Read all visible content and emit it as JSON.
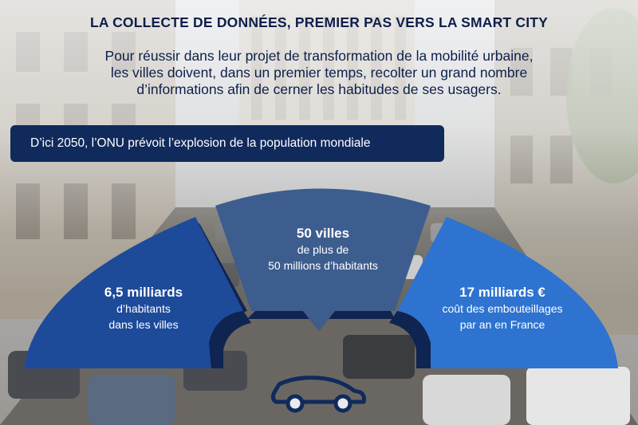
{
  "title": "LA COLLECTE DE DONNÉES, PREMIER PAS VERS LA SMART CITY",
  "intro": {
    "line1": "Pour réussir dans leur projet de transformation de la mobilité urbaine,",
    "line2": "les villes doivent, dans un premier  temps, recolter un grand nombre",
    "line3": "d’informations afin de cerner les habitudes de ses usagers."
  },
  "banner": "D’ici 2050, l’ONU prévoit l’explosion de la population mondiale",
  "stats": {
    "left": {
      "value": "6,5 milliards",
      "line1": "d’habitants",
      "line2": "dans les villes"
    },
    "middle": {
      "value": "50 villes",
      "line1": "de plus de",
      "line2": "50 millions d’habitants"
    },
    "right": {
      "value": "17 milliards €",
      "line1": "coût des embouteillages",
      "line2": "par an en France"
    }
  },
  "icon": "car-icon",
  "colors": {
    "dark_navy": "#102a5c",
    "left_segment": "#1e4a9a",
    "middle_segment": "#3e5d8f",
    "right_segment": "#2e73cf",
    "inner_band": "#0f2450"
  }
}
